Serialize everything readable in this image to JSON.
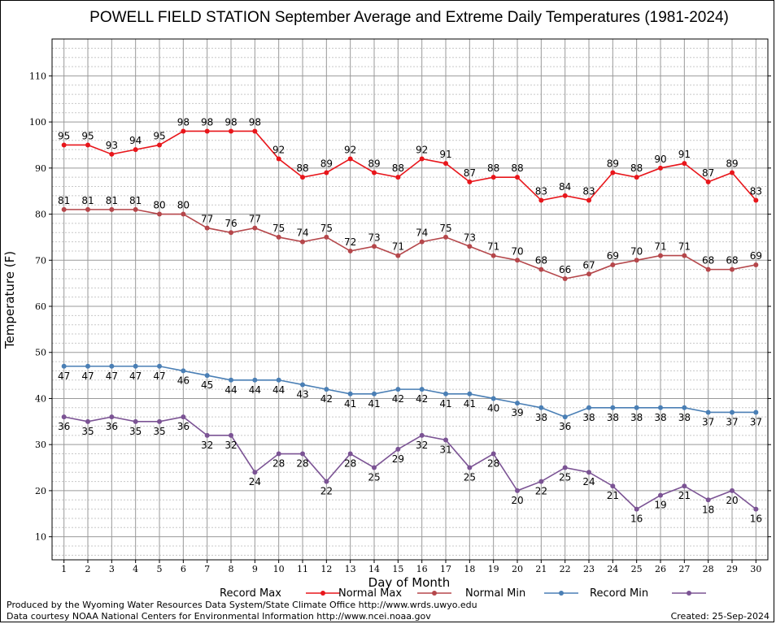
{
  "footer": {
    "credit_line1": "Produced by the Wyoming Water Resources Data System/State Climate Office http://www.wrds.uwyo.edu",
    "credit_line2": "Data courtesy NOAA National Centers for Environmental Information http://www.ncei.noaa.gov",
    "created": "Created:  25-Sep-2024"
  },
  "chart_data": {
    "type": "line",
    "title": "POWELL FIELD STATION September Average and Extreme Daily Temperatures (1981-2024)",
    "xlabel": "Day of Month",
    "ylabel": "Temperature (F)",
    "xlim": [
      0.5,
      30.5
    ],
    "ylim": [
      5,
      118
    ],
    "x": [
      1,
      2,
      3,
      4,
      5,
      6,
      7,
      8,
      9,
      10,
      11,
      12,
      13,
      14,
      15,
      16,
      17,
      18,
      19,
      20,
      21,
      22,
      23,
      24,
      25,
      26,
      27,
      28,
      29,
      30
    ],
    "yticks": [
      10,
      20,
      30,
      40,
      50,
      60,
      70,
      80,
      90,
      100,
      110
    ],
    "grid": true,
    "legend_position": "bottom",
    "series": [
      {
        "name": "Record Max",
        "color": "#e8161b",
        "label_pos": "above",
        "values": [
          95,
          95,
          93,
          94,
          95,
          98,
          98,
          98,
          98,
          92,
          88,
          89,
          92,
          89,
          88,
          92,
          91,
          87,
          88,
          88,
          83,
          84,
          83,
          89,
          88,
          90,
          91,
          87,
          89,
          83
        ]
      },
      {
        "name": "Normal Max",
        "color": "#b5474b",
        "label_pos": "above",
        "values": [
          81,
          81,
          81,
          81,
          80,
          80,
          77,
          76,
          77,
          75,
          74,
          75,
          72,
          73,
          71,
          74,
          75,
          73,
          71,
          70,
          68,
          66,
          67,
          69,
          70,
          71,
          71,
          68,
          68,
          69
        ]
      },
      {
        "name": "Normal Min",
        "color": "#4a7fb5",
        "label_pos": "below",
        "values": [
          47,
          47,
          47,
          47,
          47,
          46,
          45,
          44,
          44,
          44,
          43,
          42,
          41,
          41,
          42,
          42,
          41,
          41,
          40,
          39,
          38,
          36,
          38,
          38,
          38,
          38,
          38,
          37,
          37,
          37
        ]
      },
      {
        "name": "Record Min",
        "color": "#7b5394",
        "label_pos": "below",
        "values": [
          36,
          35,
          36,
          35,
          35,
          36,
          32,
          32,
          24,
          28,
          28,
          22,
          28,
          25,
          29,
          32,
          31,
          25,
          28,
          20,
          22,
          25,
          24,
          21,
          16,
          19,
          21,
          18,
          20,
          16
        ]
      }
    ]
  }
}
